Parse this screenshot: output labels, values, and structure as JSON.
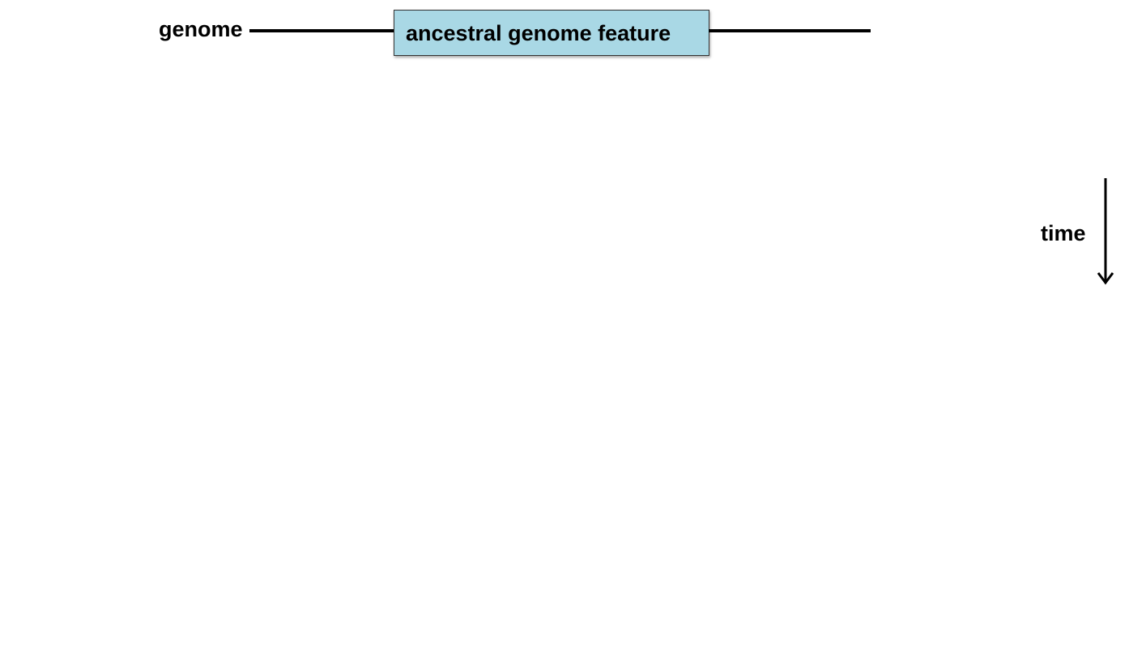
{
  "diagram": {
    "genome_label": "genome",
    "feature_label": "ancestral genome feature",
    "time_label": "time",
    "colors": {
      "feature_fill": "#a9d8e5",
      "line": "#000000"
    }
  }
}
